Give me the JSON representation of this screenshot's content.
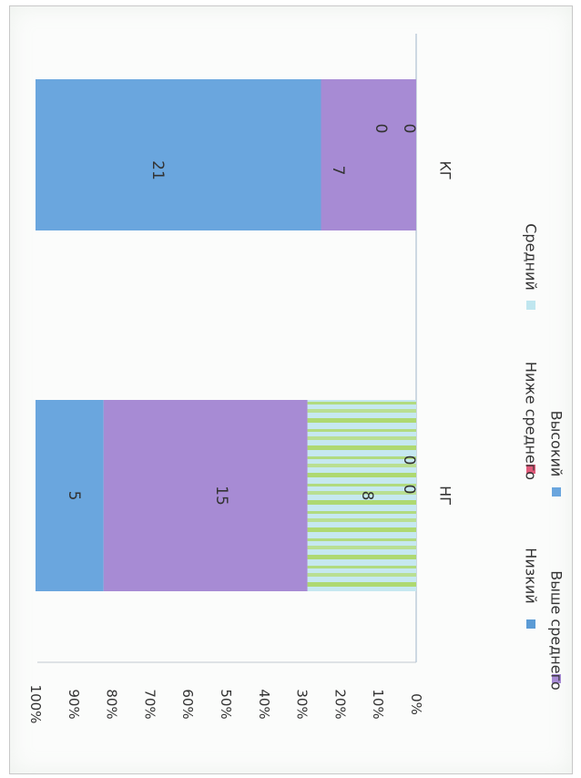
{
  "chart_data": {
    "type": "bar",
    "stacked": true,
    "percent_stacked": true,
    "orientation": "rotated 90° clockwise on the page",
    "categories": [
      "НГ",
      "КГ"
    ],
    "series": [
      {
        "name": "Низкий",
        "color": "#5b9bd5",
        "values": [
          0,
          0
        ]
      },
      {
        "name": "Ниже среднего",
        "color": "#e05a7a",
        "values": [
          0,
          0
        ]
      },
      {
        "name": "Средний",
        "color": "#bfe6ef",
        "values": [
          8,
          0
        ]
      },
      {
        "name": "Выше среднего",
        "color": "#a78bd4",
        "values": [
          15,
          7
        ]
      },
      {
        "name": "Высокий",
        "color": "#6aa6de",
        "values": [
          5,
          21
        ]
      }
    ],
    "data_labels": [
      [
        "0",
        "0",
        "8",
        "15",
        "5"
      ],
      [
        "0",
        "0",
        "",
        "7",
        "21"
      ]
    ],
    "y_ticks": [
      "0%",
      "10%",
      "20%",
      "30%",
      "40%",
      "50%",
      "60%",
      "70%",
      "80%",
      "90%",
      "100%"
    ],
    "ylim": [
      0,
      100
    ],
    "grid": false,
    "legend_position": "bottom"
  }
}
